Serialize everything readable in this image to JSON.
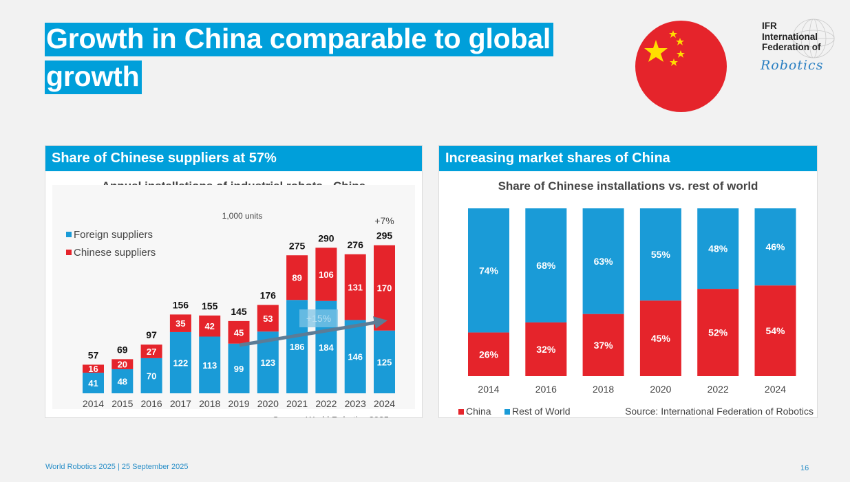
{
  "title_lines": [
    "Growth in China comparable to global",
    "growth"
  ],
  "logo": {
    "lines": [
      "IFR",
      "International",
      "Federation of"
    ],
    "script": "Robotics"
  },
  "flag_icon": "china-flag-icon",
  "colors": {
    "accent": "#009fda",
    "china_red": "#e5242b",
    "foreign_blue": "#1a9bd7"
  },
  "left_panel": {
    "header": "Share of Chinese suppliers at 57%",
    "chart_title": "Annual installations of industrial robots - China",
    "units": "1,000 units",
    "annotation_growth": "+7%",
    "annotation_cagr": "+15%",
    "source": "Source: World Robotics 2025"
  },
  "right_panel": {
    "header": "Increasing market shares of China",
    "chart_title": "Share of Chinese installations vs. rest of world",
    "source": "Source: International Federation of Robotics"
  },
  "chart_data": [
    {
      "type": "bar",
      "stacked": true,
      "title": "Annual installations of industrial robots - China",
      "unit": "1,000 units",
      "categories": [
        "2014",
        "2015",
        "2016",
        "2017",
        "2018",
        "2019",
        "2020",
        "2021",
        "2022",
        "2023",
        "2024"
      ],
      "series": [
        {
          "name": "Foreign suppliers",
          "values": [
            41,
            48,
            70,
            122,
            113,
            99,
            123,
            186,
            184,
            146,
            125
          ],
          "color": "#1a9bd7"
        },
        {
          "name": "Chinese suppliers",
          "values": [
            16,
            20,
            27,
            35,
            42,
            45,
            53,
            89,
            106,
            131,
            170
          ],
          "color": "#e5242b"
        }
      ],
      "totals": [
        57,
        69,
        97,
        156,
        155,
        145,
        176,
        275,
        290,
        276,
        295
      ],
      "legend": "top-left",
      "ylim": [
        0,
        310
      ]
    },
    {
      "type": "bar",
      "stacked": true,
      "percent": true,
      "title": "Share of Chinese installations vs. rest of world",
      "categories": [
        "2014",
        "2016",
        "2018",
        "2020",
        "2022",
        "2024"
      ],
      "series": [
        {
          "name": "China",
          "values": [
            26,
            32,
            37,
            45,
            52,
            54
          ],
          "color": "#e5242b"
        },
        {
          "name": "Rest of World",
          "values": [
            74,
            68,
            63,
            55,
            48,
            46
          ],
          "color": "#1a9bd7"
        }
      ],
      "legend": "bottom-left",
      "ylim": [
        0,
        100
      ]
    }
  ],
  "footer": {
    "left": "World Robotics 2025  | 25 September 2025",
    "page": "16"
  }
}
